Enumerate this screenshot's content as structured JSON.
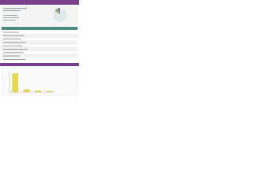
{
  "chart_data": [
    {
      "type": "pie",
      "values": [
        86,
        8,
        6
      ],
      "colors": [
        "#dfe8ea",
        "#7fb36a",
        "#8a4f9e"
      ]
    },
    {
      "type": "bar",
      "categories": [
        null,
        null,
        null,
        null
      ],
      "values": [
        88,
        12,
        6,
        4
      ],
      "color": "#e8d84a",
      "ylim": [
        0,
        100
      ]
    }
  ]
}
